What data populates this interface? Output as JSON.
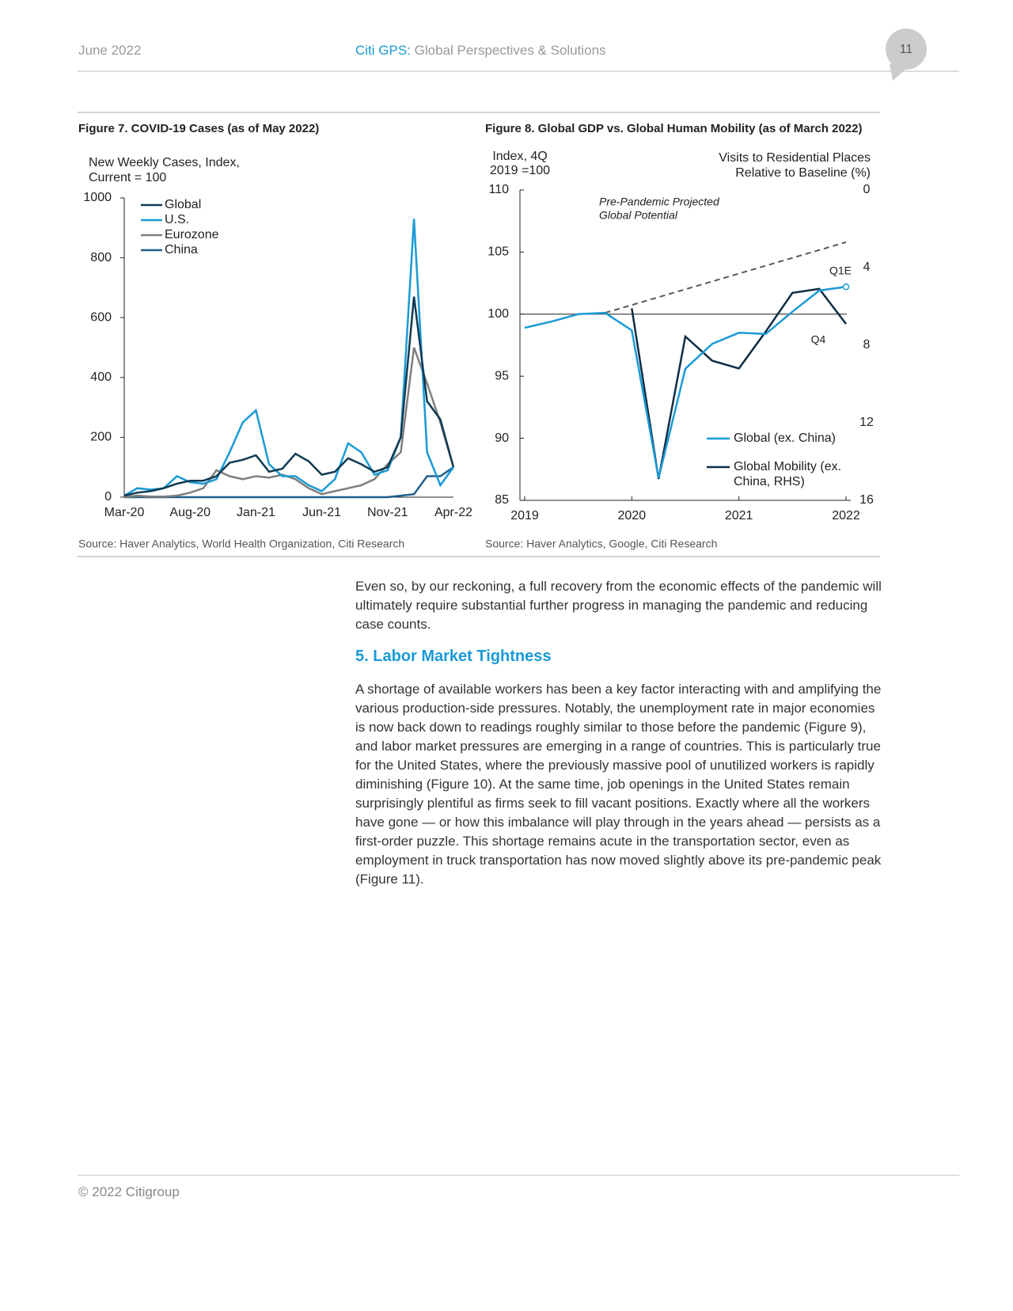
{
  "header": {
    "date": "June 2022",
    "brand": "Citi GPS:",
    "tagline": "Global Perspectives & Solutions",
    "page": "11"
  },
  "chart_data": [
    {
      "type": "line",
      "title": "Figure 7. COVID-19 Cases (as of May 2022)",
      "ylabel": [
        "New Weekly Cases, Index,",
        "Current = 100"
      ],
      "categories": [
        "Mar-20",
        null,
        null,
        null,
        null,
        "Aug-20",
        null,
        null,
        null,
        null,
        "Jan-21",
        null,
        null,
        null,
        null,
        "Jun-21",
        null,
        null,
        null,
        null,
        "Nov-21",
        null,
        null,
        null,
        null,
        "Apr-22"
      ],
      "series": [
        {
          "name": "Global",
          "color": "#0f3a52",
          "values": [
            5,
            15,
            20,
            30,
            45,
            55,
            55,
            70,
            115,
            125,
            140,
            85,
            95,
            145,
            120,
            75,
            85,
            130,
            110,
            85,
            100,
            200,
            670,
            320,
            260,
            100
          ]
        },
        {
          "name": "U.S.",
          "color": "#1a9ad6",
          "values": [
            5,
            30,
            25,
            30,
            70,
            50,
            45,
            60,
            150,
            250,
            290,
            110,
            70,
            70,
            40,
            20,
            60,
            180,
            150,
            75,
            90,
            200,
            930,
            150,
            40,
            100
          ]
        },
        {
          "name": "Eurozone",
          "color": "#7f7f7f",
          "values": [
            0,
            5,
            2,
            2,
            5,
            15,
            30,
            90,
            70,
            60,
            70,
            65,
            75,
            60,
            30,
            10,
            20,
            30,
            40,
            60,
            110,
            150,
            500,
            380,
            250,
            100
          ]
        },
        {
          "name": "China",
          "color": "#1f5f8b",
          "values": [
            0,
            0,
            0,
            0,
            0,
            0,
            0,
            0,
            0,
            0,
            0,
            0,
            0,
            0,
            0,
            0,
            0,
            0,
            0,
            0,
            0,
            5,
            10,
            70,
            70,
            100
          ]
        }
      ],
      "ylim": [
        0,
        1000
      ],
      "yticks": [
        0,
        200,
        400,
        600,
        800,
        1000
      ],
      "source": "Source: Haver Analytics, World Health Organization, Citi Research"
    },
    {
      "type": "line",
      "title": "Figure 8. Global GDP vs. Global Human Mobility (as of March 2022)",
      "ylabel": [
        "Index, 4Q",
        "2019 =100"
      ],
      "y2label": [
        "Visits to Residential Places",
        "Relative to Baseline (%)"
      ],
      "x": [
        2019,
        2019.25,
        2019.5,
        2019.75,
        2020,
        2020.25,
        2020.5,
        2020.75,
        2021,
        2021.25,
        2021.5,
        2021.75,
        2022
      ],
      "series": [
        {
          "name": "Global (ex. China)",
          "color": "#1a9ad6",
          "values": [
            98.9,
            99.4,
            100.0,
            100.1,
            98.7,
            86.8,
            95.6,
            97.6,
            98.5,
            98.4,
            100.2,
            101.9,
            102.2
          ]
        },
        {
          "name": "Global Mobility (ex. China, RHS)",
          "color": "#0f2d44",
          "axis": "y2",
          "values": [
            null,
            null,
            null,
            null,
            6.1,
            14.9,
            7.55,
            8.8,
            9.2,
            7.3,
            5.3,
            5.1,
            6.9
          ]
        }
      ],
      "potential": {
        "label": [
          "Pre-Pandemic Projected",
          "Global Potential"
        ],
        "x": [
          2019.75,
          2022
        ],
        "values": [
          100.1,
          105.8
        ],
        "color": "#555555"
      },
      "reference_line": 100,
      "annotations": [
        "Q1E",
        "Q4"
      ],
      "xlim": [
        2019,
        2022
      ],
      "xticks": [
        2019,
        2020,
        2021,
        2022
      ],
      "ylim": [
        85,
        110
      ],
      "yticks": [
        85,
        90,
        95,
        100,
        105,
        110
      ],
      "y2lim": [
        16,
        0
      ],
      "y2ticks": [
        0,
        4,
        8,
        12,
        16
      ],
      "source": "Source: Haver Analytics, Google, Citi Research"
    }
  ],
  "body": {
    "intro": "Even so, by our reckoning, a full recovery from the economic effects of the pandemic will ultimately require substantial further progress in managing the pandemic and reducing case counts.",
    "heading": "5. Labor Market Tightness",
    "text": "A shortage of available workers has been a key factor interacting with and amplifying the various production-side pressures. Notably, the unemployment rate in major economies is now back down to readings roughly similar to those before the pandemic (Figure 9), and labor market pressures are emerging in a range of countries. This is particularly true for the United States, where the previously massive pool of unutilized workers is rapidly diminishing (Figure 10). At the same time, job openings in the United States remain surprisingly plentiful as firms seek to fill vacant positions. Exactly where all the workers have gone — or how this imbalance will play through in the years ahead — persists as a first-order puzzle. This shortage remains acute in the transportation sector, even as employment in truck transportation has now moved slightly above its pre-pandemic peak (Figure 11)."
  },
  "footer": {
    "copyright": "© 2022 Citigroup"
  }
}
